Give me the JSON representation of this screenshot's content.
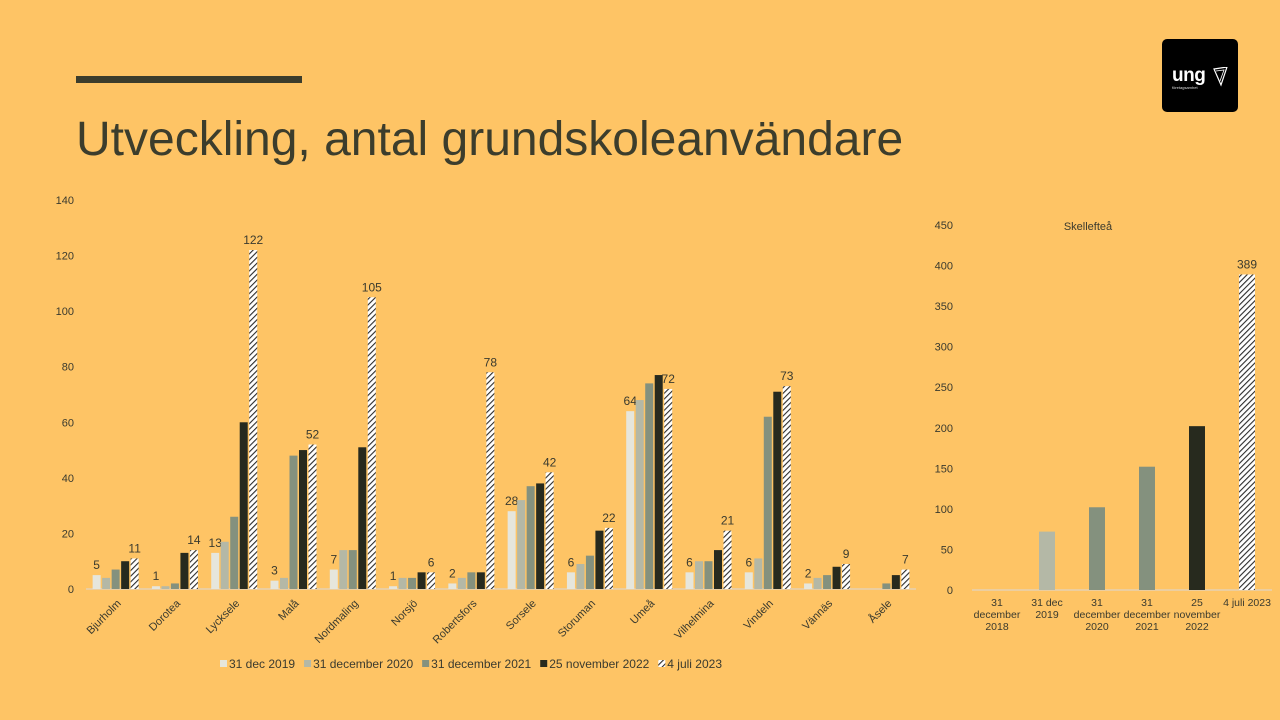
{
  "slide": {
    "title": "Utveckling, antal grundskoleanvändare",
    "logo_text": "ung",
    "logo_subtext": "företagsamhet",
    "accent_color": "#3c3d2c",
    "background_color": "#FEC465"
  },
  "chart_data": [
    {
      "type": "bar",
      "title": "",
      "ylim": [
        0,
        140
      ],
      "yticks": [
        0,
        20,
        40,
        60,
        80,
        100,
        120,
        140
      ],
      "grid": false,
      "legend_position": "bottom",
      "categories": [
        "Bjurholm",
        "Dorotea",
        "Lycksele",
        "Malå",
        "Nordmaling",
        "Norsjö",
        "Robertsfors",
        "Sorsele",
        "Storuman",
        "Umeå",
        "Vilhelmina",
        "Vindeln",
        "Vännäs",
        "Åsele"
      ],
      "series": [
        {
          "name": "31 dec 2019",
          "color": "#e6e6dc",
          "pattern": "solid",
          "values": [
            5,
            1,
            13,
            3,
            7,
            1,
            2,
            28,
            6,
            64,
            6,
            6,
            2,
            0
          ],
          "labels": [
            "5",
            "1",
            "13",
            "3",
            "7",
            "1",
            "2",
            "28",
            "6",
            "64",
            "6",
            "6",
            "2",
            ""
          ]
        },
        {
          "name": "31 december 2020",
          "color": "#b4b8a6",
          "pattern": "solid",
          "values": [
            4,
            1,
            17,
            4,
            14,
            4,
            4,
            32,
            9,
            68,
            10,
            11,
            4,
            0
          ],
          "labels": [
            "",
            "",
            "",
            "",
            "",
            "",
            "",
            "",
            "",
            "",
            "",
            "",
            "",
            ""
          ]
        },
        {
          "name": "31 december 2021",
          "color": "#84917e",
          "pattern": "solid",
          "values": [
            7,
            2,
            26,
            48,
            14,
            4,
            6,
            37,
            12,
            74,
            10,
            62,
            5,
            2
          ],
          "labels": [
            "",
            "",
            "",
            "",
            "",
            "",
            "",
            "",
            "",
            "",
            "",
            "",
            "",
            ""
          ]
        },
        {
          "name": "25 november 2022",
          "color": "#272a1e",
          "pattern": "solid",
          "values": [
            10,
            13,
            60,
            50,
            51,
            6,
            6,
            38,
            21,
            77,
            14,
            71,
            8,
            5
          ],
          "labels": [
            "",
            "",
            "",
            "",
            "",
            "",
            "",
            "",
            "",
            "",
            "",
            "",
            "",
            ""
          ]
        },
        {
          "name": "4 juli 2023",
          "color": "#2b2b2b",
          "pattern": "hatch",
          "values": [
            11,
            14,
            122,
            52,
            105,
            6,
            78,
            42,
            22,
            72,
            21,
            73,
            9,
            7
          ],
          "labels": [
            "11",
            "14",
            "122",
            "52",
            "105",
            "6",
            "78",
            "42",
            "22",
            "72",
            "21",
            "73",
            "9",
            "7"
          ]
        }
      ]
    },
    {
      "type": "bar",
      "title": "Skellefteå",
      "ylim": [
        0,
        450
      ],
      "yticks": [
        0,
        50,
        100,
        150,
        200,
        250,
        300,
        350,
        400,
        450
      ],
      "grid": false,
      "categories": [
        "31 december 2018",
        "31 dec 2019",
        "31 december 2020",
        "31 december 2021",
        "25 november 2022",
        "4 juli 2023"
      ],
      "category_lines": [
        [
          "31",
          "december",
          "2018"
        ],
        [
          "31 dec",
          "2019"
        ],
        [
          "31",
          "december",
          "2020"
        ],
        [
          "31",
          "december",
          "2021"
        ],
        [
          "25",
          "november",
          "2022"
        ],
        [
          "4 juli 2023"
        ]
      ],
      "values": [
        0,
        72,
        102,
        152,
        202,
        389
      ],
      "colors": [
        "#e6e6dc",
        "#b4b8a6",
        "#84917e",
        "#84917e",
        "#272a1e",
        "#2b2b2b"
      ],
      "patterns": [
        "solid",
        "solid",
        "solid",
        "solid",
        "solid",
        "hatch"
      ],
      "labels": [
        "",
        "",
        "",
        "",
        "",
        "389"
      ]
    }
  ]
}
